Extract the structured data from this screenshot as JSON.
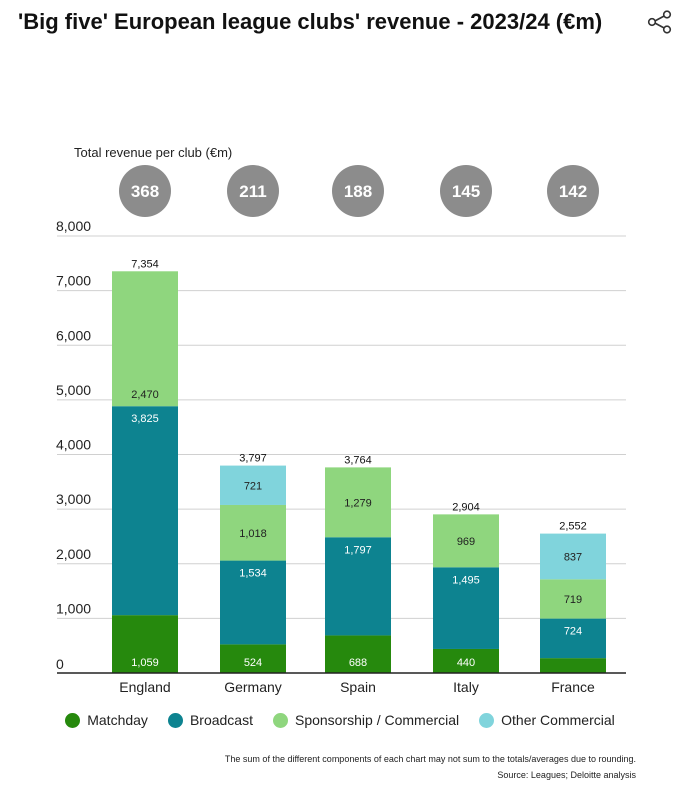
{
  "title": "'Big five' European league clubs' revenue - 2023/24 (€m)",
  "share_icon": "share-icon",
  "chart_data": {
    "type": "bar",
    "stacked": true,
    "categories": [
      "England",
      "Germany",
      "Spain",
      "Italy",
      "France"
    ],
    "ylim": [
      0,
      8000
    ],
    "yticks": [
      0,
      1000,
      2000,
      3000,
      4000,
      5000,
      6000,
      7000,
      8000
    ],
    "ytick_labels": [
      "0",
      "1,000",
      "2,000",
      "3,000",
      "4,000",
      "5,000",
      "6,000",
      "7,000",
      "8,000"
    ],
    "grid": true,
    "legend_position": "bottom",
    "series": [
      {
        "name": "Matchday",
        "color": "#26890d",
        "values": [
          1059,
          524,
          688,
          440,
          272
        ],
        "labels": [
          "1,059",
          "524",
          "688",
          "440",
          ""
        ]
      },
      {
        "name": "Broadcast",
        "color": "#0d8390",
        "values": [
          3825,
          1534,
          1797,
          1495,
          724
        ],
        "labels": [
          "3,825",
          "1,534",
          "1,797",
          "1,495",
          "724"
        ]
      },
      {
        "name": "Sponsorship / Commercial",
        "color": "#8fd67e",
        "values": [
          2470,
          1018,
          1279,
          969,
          719
        ],
        "labels": [
          "2,470",
          "1,018",
          "1,279",
          "969",
          "719"
        ]
      },
      {
        "name": "Other Commercial",
        "color": "#80d4dc",
        "values": [
          0,
          721,
          0,
          0,
          837
        ],
        "labels": [
          "",
          "721",
          "",
          "",
          "837"
        ]
      }
    ],
    "totals": [
      7354,
      3797,
      3764,
      2904,
      2552
    ],
    "total_labels": [
      "7,354",
      "3,797",
      "3,764",
      "2,904",
      "2,552"
    ],
    "per_club_heading": "Total revenue per club (€m)",
    "per_club": [
      "368",
      "211",
      "188",
      "145",
      "142"
    ]
  },
  "footnote": "The sum of the different components of each chart may not sum to the totals/averages due to rounding.",
  "source": "Source: Leagues; Deloitte analysis"
}
